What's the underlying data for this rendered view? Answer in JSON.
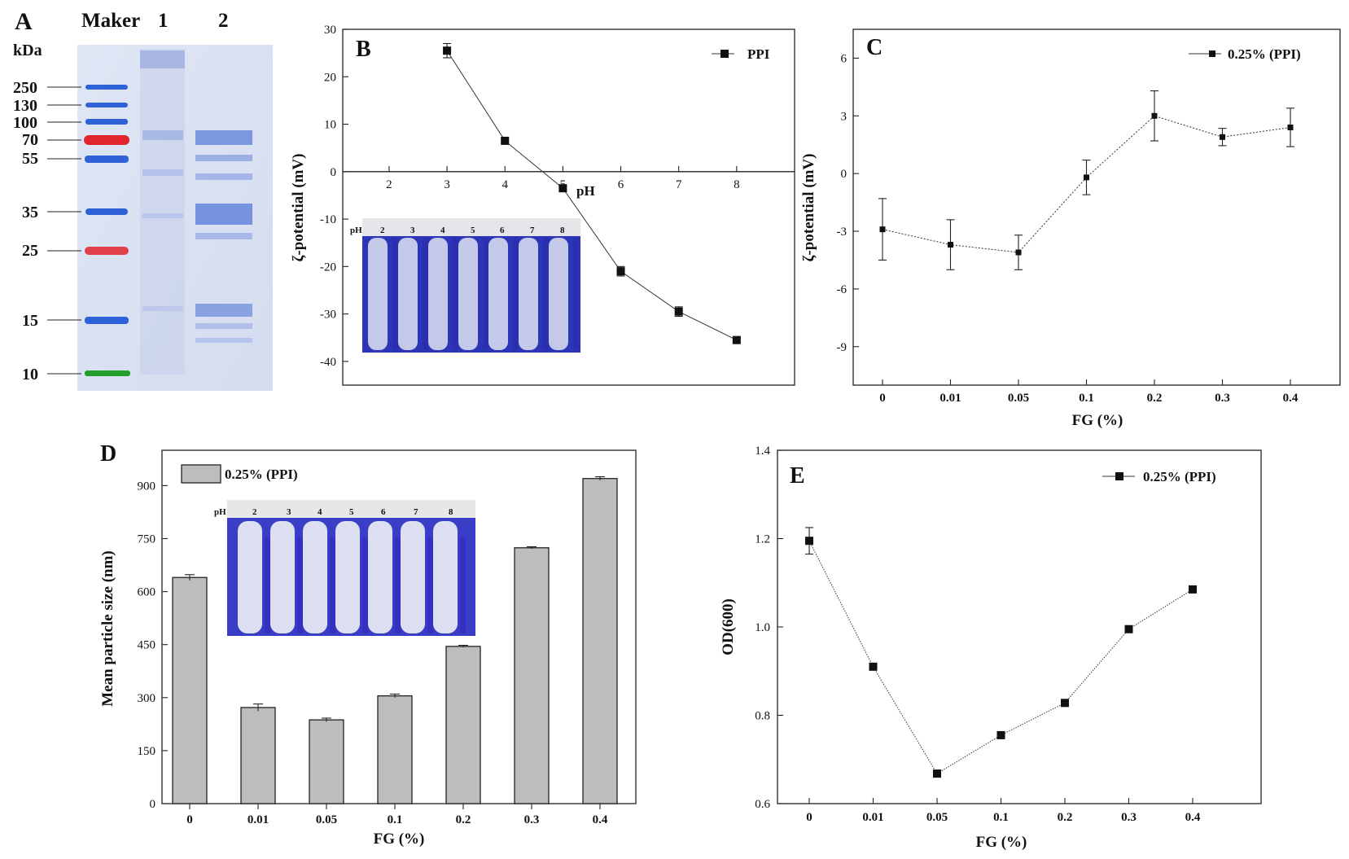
{
  "chart_data": [
    {
      "panel": "A",
      "type": "other",
      "description_labels": {
        "panel_letter": "A",
        "lane_headers": [
          "Maker",
          "1",
          "2"
        ],
        "unit": "kDa",
        "markers": [
          "250",
          "130",
          "100",
          "70",
          "55",
          "35",
          "25",
          "15",
          "10"
        ]
      }
    },
    {
      "panel": "B",
      "type": "line",
      "panel_letter": "B",
      "ylabel": "ζ-potential (mV)",
      "xlabel": "pH",
      "x": [
        3,
        4,
        5,
        6,
        7,
        8
      ],
      "series": [
        {
          "name": "PPI",
          "values": [
            25.5,
            6.5,
            -3.5,
            -21.0,
            -29.5,
            -35.5
          ],
          "errors": [
            1.5,
            0.4,
            0.5,
            1.0,
            1.0,
            0.5
          ]
        }
      ],
      "xlim": [
        1.2,
        9.0
      ],
      "ylim": [
        -45,
        30
      ],
      "xticks": [
        "2",
        "3",
        "4",
        "5",
        "6",
        "7",
        "8"
      ],
      "yticks": [
        "30",
        "20",
        "10",
        "0",
        "-10",
        "-20",
        "-30",
        "-40"
      ],
      "inset_labels": [
        "pH",
        "2",
        "3",
        "4",
        "5",
        "6",
        "7",
        "8"
      ]
    },
    {
      "panel": "C",
      "type": "line",
      "panel_letter": "C",
      "ylabel": "ζ-potential (mV)",
      "xlabel": "FG (%)",
      "categories": [
        "0",
        "0.01",
        "0.05",
        "0.1",
        "0.2",
        "0.3",
        "0.4"
      ],
      "series": [
        {
          "name": "0.25% (PPI)",
          "values": [
            -2.9,
            -3.7,
            -4.1,
            -0.2,
            3.0,
            1.9,
            2.4
          ],
          "errors": [
            1.6,
            1.3,
            0.9,
            0.9,
            1.3,
            0.45,
            1.0
          ]
        }
      ],
      "ylim": [
        -11,
        7.5
      ],
      "yticks": [
        "6",
        "3",
        "0",
        "-3",
        "-6",
        "-9"
      ]
    },
    {
      "panel": "D",
      "type": "bar",
      "panel_letter": "D",
      "ylabel": "Mean particle size (nm)",
      "xlabel": "FG (%)",
      "categories": [
        "0",
        "0.01",
        "0.05",
        "0.1",
        "0.2",
        "0.3",
        "0.4"
      ],
      "series": [
        {
          "name": "0.25% (PPI)",
          "values": [
            640,
            272,
            237,
            305,
            445,
            724,
            920
          ],
          "errors": [
            8,
            10,
            5,
            5,
            3,
            3,
            5
          ]
        }
      ],
      "ylim": [
        0,
        1000
      ],
      "yticks": [
        "0",
        "150",
        "300",
        "450",
        "600",
        "750",
        "900"
      ],
      "inset_labels": [
        "pH",
        "2",
        "3",
        "4",
        "5",
        "6",
        "7",
        "8"
      ]
    },
    {
      "panel": "E",
      "type": "line",
      "panel_letter": "E",
      "ylabel": "OD(600)",
      "xlabel": "FG (%)",
      "categories": [
        "0",
        "0.01",
        "0.05",
        "0.1",
        "0.2",
        "0.3",
        "0.4"
      ],
      "series": [
        {
          "name": "0.25% (PPI)",
          "values": [
            1.195,
            0.91,
            0.668,
            0.755,
            0.828,
            0.995,
            1.085
          ],
          "errors": [
            0.03,
            0,
            0,
            0,
            0,
            0,
            0
          ]
        }
      ],
      "ylim": [
        0.6,
        1.4
      ],
      "yticks": [
        "0.6",
        "0.8",
        "1.0",
        "1.2",
        "1.4"
      ]
    }
  ]
}
